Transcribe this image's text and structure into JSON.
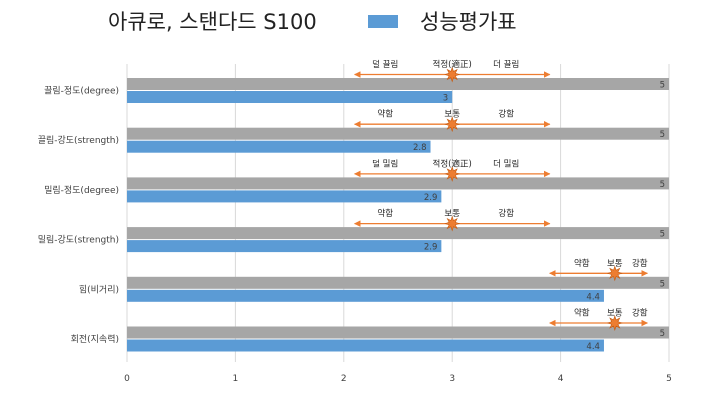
{
  "chart_data": {
    "type": "bar",
    "orientation": "horizontal",
    "title": "아큐로, 스탠다드 S100",
    "xlim": [
      0,
      5
    ],
    "x_ticks": [
      "0",
      "1",
      "2",
      "3",
      "4",
      "5"
    ],
    "grid": true,
    "legend": {
      "position": "top",
      "entries": [
        "성능평가표"
      ]
    },
    "categories": [
      "끌림-정도(degree)",
      "끌림-강도(strength)",
      "밀림-정도(degree)",
      "밀림-강도(strength)",
      "힘(비거리)",
      "회전(지속력)"
    ],
    "series": [
      {
        "name": "",
        "values": [
          5,
          5,
          5,
          5,
          5,
          5
        ],
        "labels": [
          "5",
          "5",
          "5",
          "5",
          "5",
          "5"
        ],
        "color": "#a6a6a6"
      },
      {
        "name": "성능평가표",
        "values": [
          3,
          2.8,
          2.9,
          2.9,
          4.4,
          4.4
        ],
        "labels": [
          "3",
          "2.8",
          "2.9",
          "2.9",
          "4.4",
          "4.4"
        ],
        "color": "#5b9bd5"
      }
    ],
    "annotations": [
      {
        "marker": 3.0,
        "left": "덜 끌림",
        "center": "적정(適正)",
        "right": "더 끌림",
        "arrow": [
          2.1,
          3.9
        ]
      },
      {
        "marker": 3.0,
        "left": "약함",
        "center": "보통",
        "right": "강함",
        "arrow": [
          2.1,
          3.9
        ]
      },
      {
        "marker": 3.0,
        "left": "덜 밀림",
        "center": "적정(適正)",
        "right": "더 밀림",
        "arrow": [
          2.1,
          3.9
        ]
      },
      {
        "marker": 3.0,
        "left": "약함",
        "center": "보통",
        "right": "강함",
        "arrow": [
          2.1,
          3.9
        ]
      },
      {
        "marker": 4.5,
        "left": "약함",
        "center": "보통",
        "right": "강함",
        "arrow": [
          3.9,
          4.8
        ]
      },
      {
        "marker": 4.5,
        "left": "약함",
        "center": "보통",
        "right": "강함",
        "arrow": [
          3.9,
          4.8
        ]
      }
    ],
    "colors": {
      "arrow": "#ed7d31",
      "star": "#ed7d31",
      "gridline": "#d9d9d9"
    }
  }
}
